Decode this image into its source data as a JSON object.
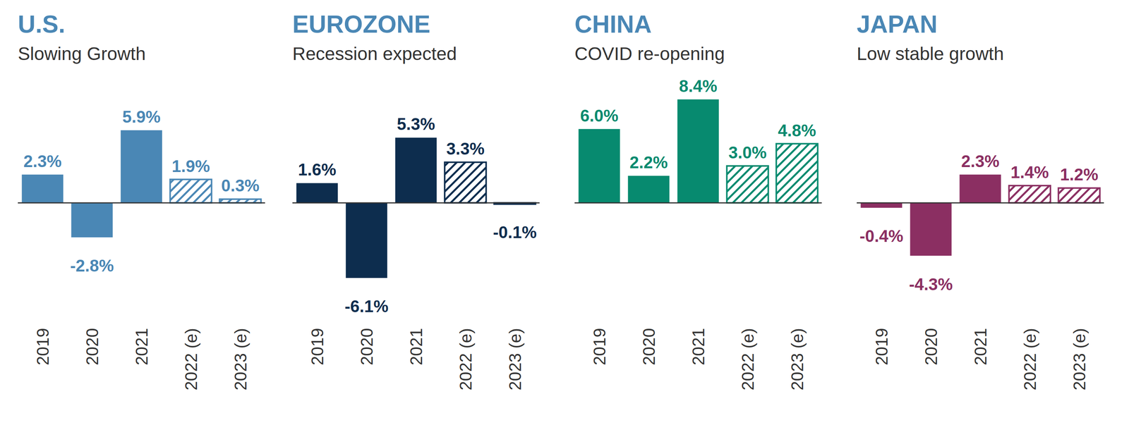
{
  "chart_data": [
    {
      "type": "bar",
      "title": "U.S.",
      "subtitle": "Slowing Growth",
      "categories": [
        "2019",
        "2020",
        "2021",
        "2022 (e)",
        "2023 (e)"
      ],
      "series": [
        {
          "color": "#4a87b5",
          "line_style": "solid",
          "values": [
            2.3,
            -2.8,
            5.9,
            null,
            null
          ],
          "value_labels": [
            "2.3%",
            "-2.8%",
            "5.9%",
            null,
            null
          ]
        },
        {
          "color": "#4a87b5",
          "line_style": "hatched",
          "values": [
            null,
            null,
            null,
            1.9,
            0.3
          ],
          "value_labels": [
            null,
            null,
            null,
            "1.9%",
            "0.3%"
          ]
        }
      ],
      "ylim": [
        -9,
        10
      ],
      "tick_labels": "x",
      "data_labels": true
    },
    {
      "type": "bar",
      "title": "EUROZONE",
      "subtitle": "Recession expected",
      "categories": [
        "2019",
        "2020",
        "2021",
        "2022 (e)",
        "2023 (e)"
      ],
      "series": [
        {
          "color": "#0d2d4e",
          "line_style": "solid",
          "values": [
            1.6,
            -6.1,
            5.3,
            null,
            null
          ],
          "value_labels": [
            "1.6%",
            "-6.1%",
            "5.3%",
            null,
            null
          ]
        },
        {
          "color": "#0d2d4e",
          "line_style": "hatched",
          "values": [
            null,
            null,
            null,
            3.3,
            -0.1
          ],
          "value_labels": [
            null,
            null,
            null,
            "3.3%",
            "-0.1%"
          ]
        }
      ],
      "ylim": [
        -9,
        10
      ],
      "tick_labels": "x",
      "data_labels": true
    },
    {
      "type": "bar",
      "title": "CHINA",
      "subtitle": "COVID re-opening",
      "categories": [
        "2019",
        "2020",
        "2021",
        "2022 (e)",
        "2023 (e)"
      ],
      "series": [
        {
          "color": "#078a6f",
          "line_style": "solid",
          "values": [
            6.0,
            2.2,
            8.4,
            null,
            null
          ],
          "value_labels": [
            "6.0%",
            "2.2%",
            "8.4%",
            null,
            null
          ]
        },
        {
          "color": "#078a6f",
          "line_style": "hatched",
          "values": [
            null,
            null,
            null,
            3.0,
            4.8
          ],
          "value_labels": [
            null,
            null,
            null,
            "3.0%",
            "4.8%"
          ]
        }
      ],
      "ylim": [
        -9,
        10
      ],
      "tick_labels": "x",
      "data_labels": true
    },
    {
      "type": "bar",
      "title": "JAPAN",
      "subtitle": "Low stable growth",
      "categories": [
        "2019",
        "2020",
        "2021",
        "2022 (e)",
        "2023 (e)"
      ],
      "series": [
        {
          "color": "#8b2f62",
          "line_style": "solid",
          "values": [
            -0.4,
            -4.3,
            2.3,
            null,
            null
          ],
          "value_labels": [
            "-0.4%",
            "-4.3%",
            "2.3%",
            null,
            null
          ]
        },
        {
          "color": "#8b2f62",
          "line_style": "hatched",
          "values": [
            null,
            null,
            null,
            1.4,
            1.2
          ],
          "value_labels": [
            null,
            null,
            null,
            "1.4%",
            "1.2%"
          ]
        }
      ],
      "ylim": [
        -9,
        10
      ],
      "tick_labels": "x",
      "data_labels": true
    }
  ]
}
